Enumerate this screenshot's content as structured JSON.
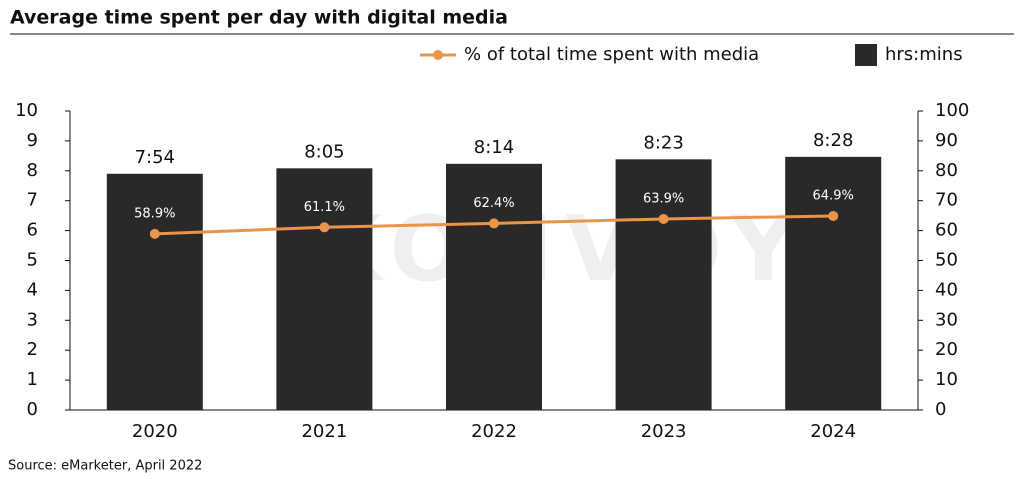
{
  "chart_data": {
    "type": "bar",
    "title": "Average time spent per day with digital media",
    "source": "Source: eMarketer, April 2022",
    "watermark": "KONVOY",
    "categories": [
      "2020",
      "2021",
      "2022",
      "2023",
      "2024"
    ],
    "series": [
      {
        "name": "% of total time spent with media",
        "type": "line",
        "axis": "y2",
        "color": "#e8954a",
        "values": [
          58.9,
          61.1,
          62.4,
          63.9,
          64.9
        ],
        "value_labels": [
          "58.9%",
          "61.1%",
          "62.4%",
          "63.9%",
          "64.9%"
        ]
      },
      {
        "name": "hrs:mins",
        "type": "bar",
        "axis": "y",
        "color": "#2b2928",
        "values": [
          7.9,
          8.0833,
          8.2333,
          8.3833,
          8.4667
        ],
        "value_labels": [
          "7:54",
          "8:05",
          "8:14",
          "8:23",
          "8:28"
        ]
      }
    ],
    "ylim": [
      0,
      10
    ],
    "yticks": [
      0,
      1,
      2,
      3,
      4,
      5,
      6,
      7,
      8,
      9,
      10
    ],
    "y2lim": [
      0,
      100
    ],
    "y2ticks": [
      0,
      10,
      20,
      30,
      40,
      50,
      60,
      70,
      80,
      90,
      100
    ],
    "grid": false
  }
}
